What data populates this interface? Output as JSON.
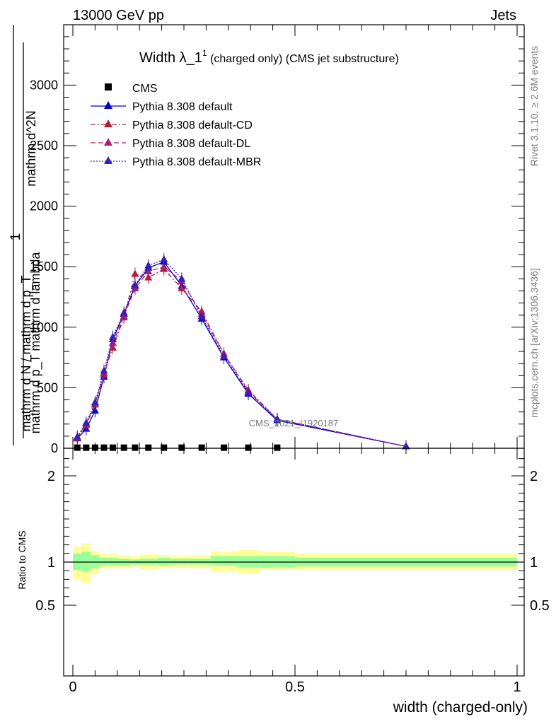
{
  "header": {
    "left": "13000 GeV pp",
    "right": "Jets"
  },
  "title": {
    "main": "Width λ_1",
    "sup": "1",
    "rest": " (charged only) (CMS jet substructure)"
  },
  "side_label_rivet": "Rivet 3.1.10, ≥ 2.6M events",
  "side_label_mcplots": "mcplots.cern.ch [arXiv:1306.3436]",
  "watermark": "CMS_2021_I1920187",
  "ylabel_main": {
    "num_line": "mathrm d^2N",
    "den_line": "mathrm d p_T mathrm d lambda",
    "left_one": "1",
    "left_den": "mathrm d N / mathrm d p_T"
  },
  "ylabel_ratio": "Ratio to CMS",
  "xlabel": "width (charged-only)",
  "colors": {
    "cms": "#000000",
    "default": "#0000cc",
    "cd": "#b0203c",
    "dl": "#b0206a",
    "mbr": "#3a1fb5",
    "band_green": "#99ff99",
    "band_yellow": "#ffff99"
  },
  "chart_data": [
    {
      "type": "line",
      "panel": "main",
      "xlim": [
        0,
        1
      ],
      "ylim": [
        0,
        3500
      ],
      "x_ticks": [
        "0",
        "0.5",
        "1"
      ],
      "y_ticks": [
        "0",
        "500",
        "1000",
        "1500",
        "2000",
        "2500",
        "3000"
      ],
      "legend_position": "top-left",
      "series": [
        {
          "name": "CMS",
          "marker": "square",
          "x": [
            0.01,
            0.03,
            0.05,
            0.07,
            0.09,
            0.115,
            0.14,
            0.17,
            0.205,
            0.245,
            0.29,
            0.34,
            0.395,
            0.46
          ],
          "y": [
            5,
            5,
            5,
            5,
            5,
            5,
            5,
            5,
            5,
            5,
            5,
            5,
            5,
            5
          ]
        },
        {
          "name": "Pythia 8.308 default",
          "marker": "triangle",
          "style": "solid",
          "x": [
            0.01,
            0.03,
            0.05,
            0.07,
            0.09,
            0.115,
            0.14,
            0.17,
            0.205,
            0.245,
            0.29,
            0.34,
            0.395,
            0.46,
            0.75
          ],
          "y": [
            80,
            160,
            310,
            590,
            900,
            1110,
            1340,
            1490,
            1540,
            1340,
            1070,
            750,
            450,
            230,
            15
          ]
        },
        {
          "name": "Pythia 8.308 default-CD",
          "marker": "triangle",
          "style": "dashdot",
          "x": [
            0.01,
            0.03,
            0.05,
            0.07,
            0.09,
            0.115,
            0.14,
            0.17,
            0.205,
            0.245,
            0.29,
            0.34,
            0.395,
            0.46,
            0.75
          ],
          "y": [
            85,
            190,
            360,
            620,
            830,
            1080,
            1440,
            1410,
            1480,
            1320,
            1130,
            780,
            480,
            240,
            15
          ]
        },
        {
          "name": "Pythia 8.308 default-DL",
          "marker": "triangle",
          "style": "dashed",
          "x": [
            0.01,
            0.03,
            0.05,
            0.07,
            0.09,
            0.115,
            0.14,
            0.17,
            0.205,
            0.245,
            0.29,
            0.34,
            0.395,
            0.46,
            0.75
          ],
          "y": [
            90,
            200,
            370,
            610,
            870,
            1090,
            1320,
            1460,
            1500,
            1380,
            1110,
            780,
            470,
            240,
            15
          ]
        },
        {
          "name": "Pythia 8.308 default-MBR",
          "marker": "triangle",
          "style": "dotted",
          "x": [
            0.01,
            0.03,
            0.05,
            0.07,
            0.09,
            0.115,
            0.14,
            0.17,
            0.205,
            0.245,
            0.29,
            0.34,
            0.395,
            0.46,
            0.75
          ],
          "y": [
            95,
            210,
            380,
            640,
            920,
            1120,
            1350,
            1510,
            1560,
            1400,
            1090,
            760,
            460,
            240,
            15
          ]
        }
      ]
    },
    {
      "type": "area",
      "panel": "ratio",
      "xlim": [
        0,
        1
      ],
      "ylim": [
        0.4,
        2.3
      ],
      "y_ticks": [
        "0.5",
        "1",
        "2"
      ],
      "reference_line": 1,
      "bins": {
        "edges": [
          0,
          0.02,
          0.04,
          0.06,
          0.08,
          0.1,
          0.13,
          0.15,
          0.19,
          0.22,
          0.26,
          0.31,
          0.37,
          0.42,
          0.5,
          1
        ],
        "green_low": [
          0.91,
          0.89,
          0.93,
          0.96,
          0.96,
          0.96,
          0.97,
          0.97,
          0.96,
          0.97,
          0.97,
          0.96,
          0.94,
          0.94,
          0.95
        ],
        "green_high": [
          1.1,
          1.12,
          1.08,
          1.05,
          1.05,
          1.04,
          1.03,
          1.04,
          1.05,
          1.04,
          1.04,
          1.07,
          1.07,
          1.07,
          1.05
        ],
        "yellow_low": [
          0.8,
          0.76,
          0.86,
          0.93,
          0.93,
          0.93,
          0.95,
          0.92,
          0.93,
          0.94,
          0.93,
          0.89,
          0.87,
          0.91,
          0.91
        ],
        "yellow_high": [
          1.18,
          1.22,
          1.13,
          1.09,
          1.09,
          1.08,
          1.07,
          1.09,
          1.08,
          1.07,
          1.08,
          1.12,
          1.14,
          1.12,
          1.1
        ]
      }
    }
  ]
}
